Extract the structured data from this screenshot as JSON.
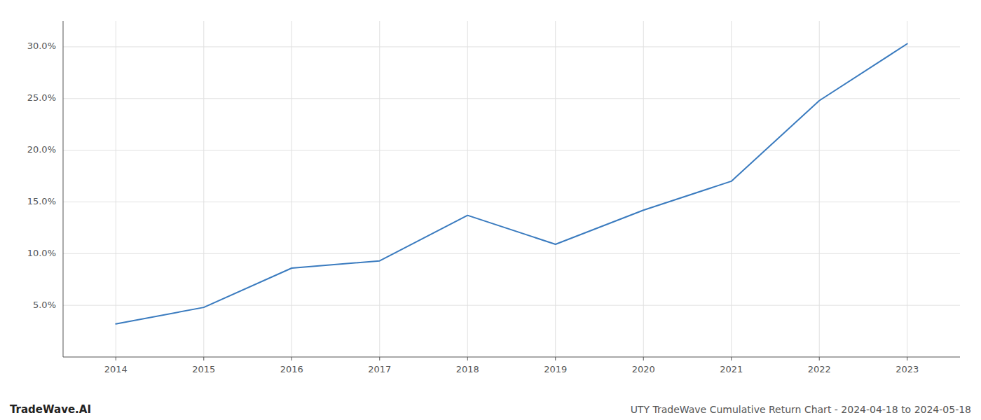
{
  "chart_data": {
    "type": "line",
    "x": [
      2014,
      2015,
      2016,
      2017,
      2018,
      2019,
      2020,
      2021,
      2022,
      2023
    ],
    "values": [
      0.032,
      0.048,
      0.086,
      0.093,
      0.137,
      0.109,
      0.142,
      0.17,
      0.248,
      0.303
    ],
    "color": "#3a7bbf",
    "xlim": [
      2013.4,
      2023.6
    ],
    "ylim": [
      0.0,
      0.325
    ],
    "xticks": [
      2014,
      2015,
      2016,
      2017,
      2018,
      2019,
      2020,
      2021,
      2022,
      2023
    ],
    "yticks": [
      {
        "value": 0.05,
        "label": "5.0%"
      },
      {
        "value": 0.1,
        "label": "10.0%"
      },
      {
        "value": 0.15,
        "label": "15.0%"
      },
      {
        "value": 0.2,
        "label": "20.0%"
      },
      {
        "value": 0.25,
        "label": "25.0%"
      },
      {
        "value": 0.3,
        "label": "30.0%"
      }
    ],
    "grid": true,
    "annotations": [
      "TradeWave.AI",
      "UTY TradeWave Cumulative Return Chart - 2024-04-18 to 2024-05-18"
    ]
  }
}
